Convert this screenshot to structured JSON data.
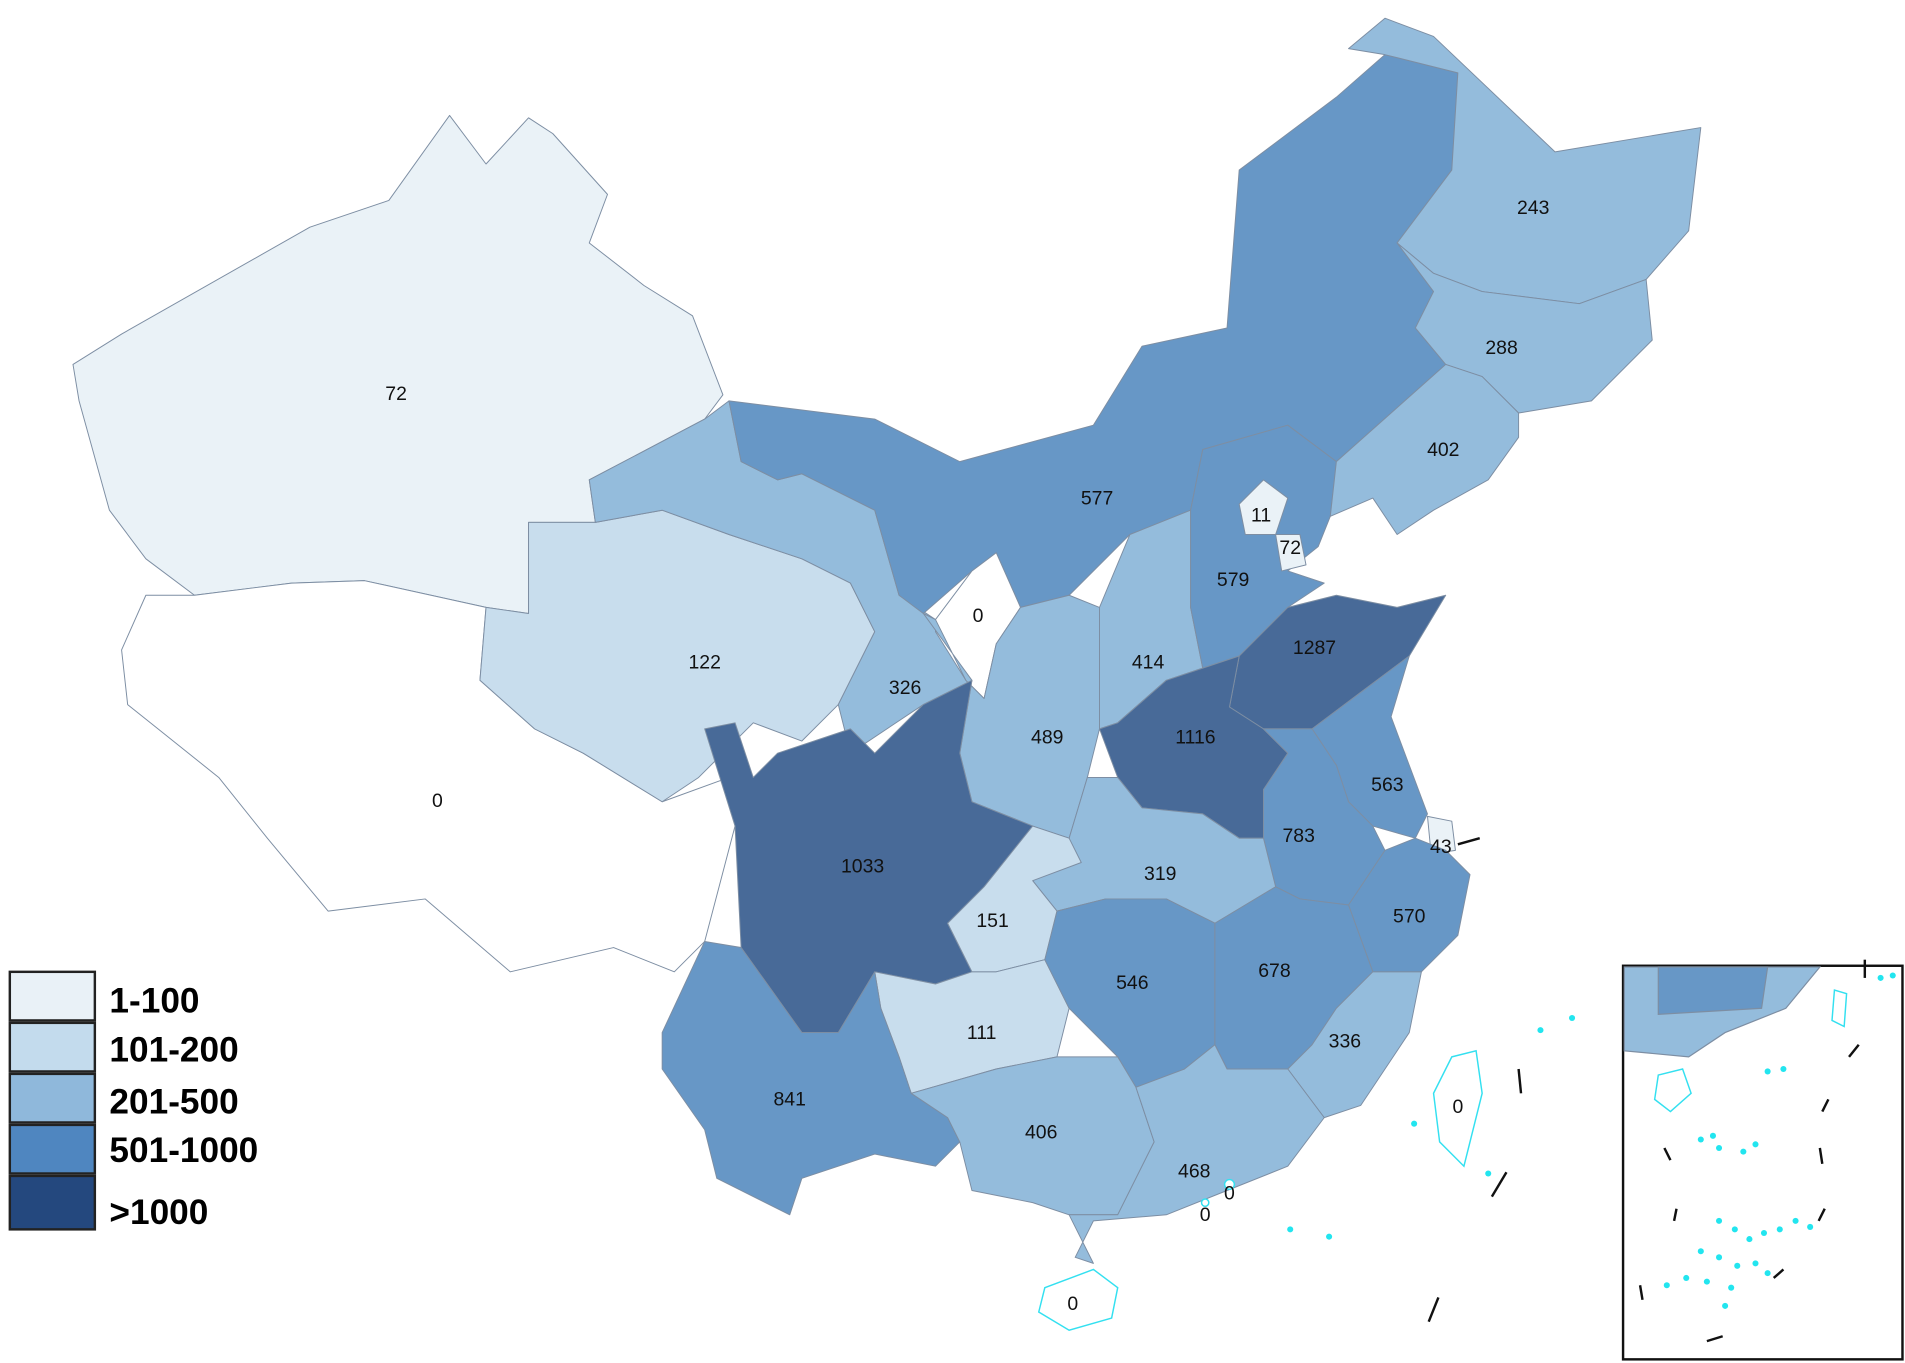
{
  "legend": {
    "items": [
      {
        "label": "1-100",
        "color": "#e9f1f7"
      },
      {
        "label": "101-200",
        "color": "#c3dbed"
      },
      {
        "label": "201-500",
        "color": "#8fb8db"
      },
      {
        "label": "501-1000",
        "color": "#4f86c0"
      },
      {
        "label": ">1000",
        "color": "#24487e"
      }
    ]
  },
  "regions": [
    {
      "value": 72,
      "color": "#eaf2f7"
    },
    {
      "value": 0,
      "color": "#ffffff"
    },
    {
      "value": 122,
      "color": "#c8dded"
    },
    {
      "value": 326,
      "color": "#94bcdc"
    },
    {
      "value": 577,
      "color": "#6797c6"
    },
    {
      "value": 0,
      "color": "#ffffff"
    },
    {
      "value": 489,
      "color": "#94bcdc"
    },
    {
      "value": 414,
      "color": "#94bcdc"
    },
    {
      "value": 579,
      "color": "#6797c6"
    },
    {
      "value": 11,
      "color": "#eaf2f7"
    },
    {
      "value": 72,
      "color": "#eaf2f7"
    },
    {
      "value": 243,
      "color": "#94bcdc"
    },
    {
      "value": 288,
      "color": "#94bcdc"
    },
    {
      "value": 402,
      "color": "#94bcdc"
    },
    {
      "value": 1287,
      "color": "#486a98"
    },
    {
      "value": 1116,
      "color": "#486a98"
    },
    {
      "value": 563,
      "color": "#6797c6"
    },
    {
      "value": 43,
      "color": "#eaf2f7"
    },
    {
      "value": 783,
      "color": "#6797c6"
    },
    {
      "value": 570,
      "color": "#6797c6"
    },
    {
      "value": 319,
      "color": "#94bcdc"
    },
    {
      "value": 1033,
      "color": "#486a98"
    },
    {
      "value": 151,
      "color": "#c8dded"
    },
    {
      "value": 111,
      "color": "#c8dded"
    },
    {
      "value": 546,
      "color": "#6797c6"
    },
    {
      "value": 678,
      "color": "#6797c6"
    },
    {
      "value": 336,
      "color": "#94bcdc"
    },
    {
      "value": 841,
      "color": "#6797c6"
    },
    {
      "value": 406,
      "color": "#94bcdc"
    },
    {
      "value": 468,
      "color": "#94bcdc"
    },
    {
      "value": 0,
      "color": "#ffffff"
    },
    {
      "value": 0,
      "color": "#ffffff"
    },
    {
      "value": 0,
      "color": "#ffffff"
    },
    {
      "value": 0,
      "color": "#ffffff"
    }
  ]
}
